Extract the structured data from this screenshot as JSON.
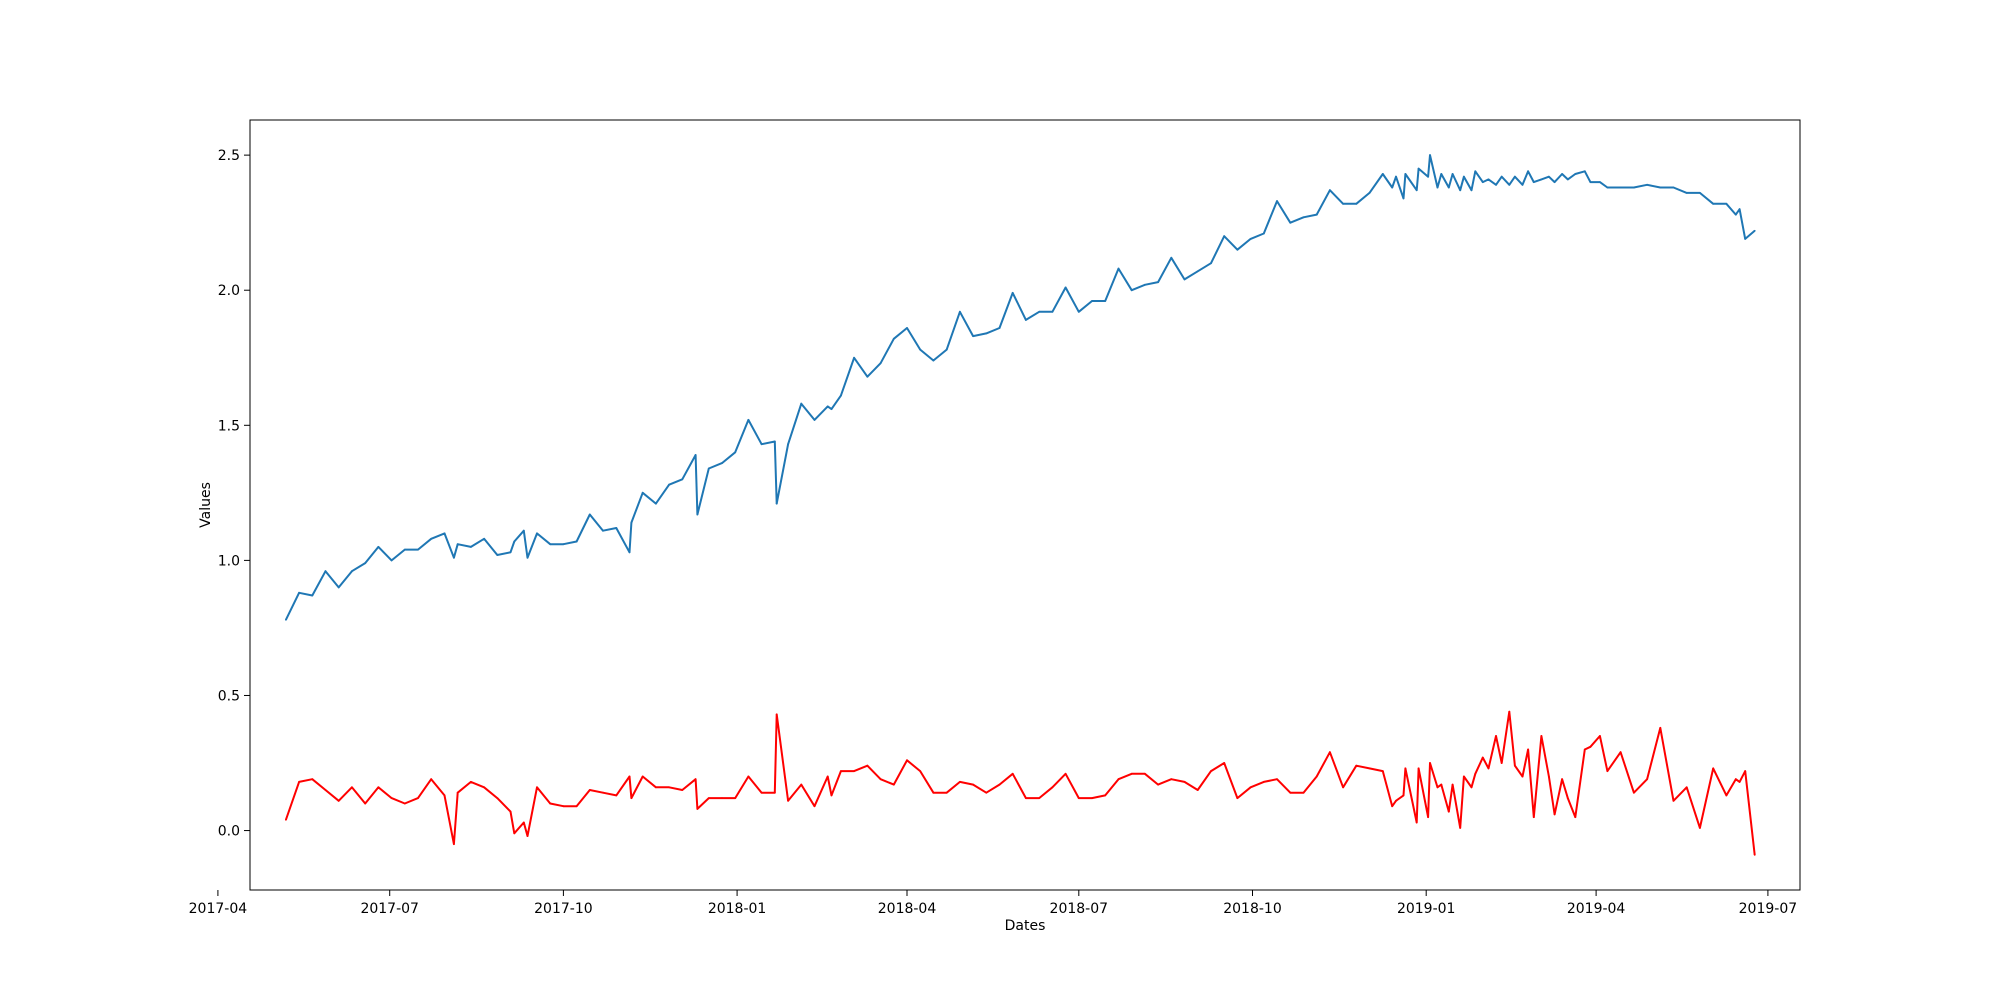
{
  "chart_data": {
    "type": "line",
    "title": "",
    "xlabel": "Dates",
    "ylabel": "Values",
    "x_axis_type": "date",
    "xlim": [
      "2017-04-18",
      "2019-07-18"
    ],
    "ylim": [
      -0.22,
      2.63
    ],
    "x_ticks": [
      "2017-04-01",
      "2017-07-01",
      "2017-10-01",
      "2018-01-01",
      "2018-04-01",
      "2018-07-01",
      "2018-10-01",
      "2019-01-01",
      "2019-04-01",
      "2019-07-01"
    ],
    "x_tick_labels": [
      "2017-04",
      "2017-07",
      "2017-10",
      "2018-01",
      "2018-04",
      "2018-07",
      "2018-10",
      "2019-01",
      "2019-04",
      "2019-07"
    ],
    "y_ticks": [
      0.0,
      0.5,
      1.0,
      1.5,
      2.0,
      2.5
    ],
    "y_tick_labels": [
      "0.0",
      "0.5",
      "1.0",
      "1.5",
      "2.0",
      "2.5"
    ],
    "grid": false,
    "legend": "none",
    "series": [
      {
        "color": "#1f77b4",
        "points": [
          [
            "2017-05-07",
            0.78
          ],
          [
            "2017-05-14",
            0.88
          ],
          [
            "2017-05-21",
            0.87
          ],
          [
            "2017-05-28",
            0.96
          ],
          [
            "2017-06-04",
            0.9
          ],
          [
            "2017-06-11",
            0.96
          ],
          [
            "2017-06-18",
            0.99
          ],
          [
            "2017-06-25",
            1.05
          ],
          [
            "2017-07-02",
            1.0
          ],
          [
            "2017-07-09",
            1.04
          ],
          [
            "2017-07-16",
            1.04
          ],
          [
            "2017-07-23",
            1.08
          ],
          [
            "2017-07-30",
            1.1
          ],
          [
            "2017-08-04",
            1.01
          ],
          [
            "2017-08-06",
            1.06
          ],
          [
            "2017-08-13",
            1.05
          ],
          [
            "2017-08-20",
            1.08
          ],
          [
            "2017-08-27",
            1.02
          ],
          [
            "2017-09-03",
            1.03
          ],
          [
            "2017-09-05",
            1.07
          ],
          [
            "2017-09-10",
            1.11
          ],
          [
            "2017-09-12",
            1.01
          ],
          [
            "2017-09-17",
            1.1
          ],
          [
            "2017-09-24",
            1.06
          ],
          [
            "2017-10-01",
            1.06
          ],
          [
            "2017-10-08",
            1.07
          ],
          [
            "2017-10-15",
            1.17
          ],
          [
            "2017-10-22",
            1.11
          ],
          [
            "2017-10-29",
            1.12
          ],
          [
            "2017-11-05",
            1.03
          ],
          [
            "2017-11-06",
            1.14
          ],
          [
            "2017-11-12",
            1.25
          ],
          [
            "2017-11-19",
            1.21
          ],
          [
            "2017-11-26",
            1.28
          ],
          [
            "2017-12-03",
            1.3
          ],
          [
            "2017-12-10",
            1.39
          ],
          [
            "2017-12-11",
            1.17
          ],
          [
            "2017-12-17",
            1.34
          ],
          [
            "2017-12-24",
            1.36
          ],
          [
            "2017-12-31",
            1.4
          ],
          [
            "2018-01-07",
            1.52
          ],
          [
            "2018-01-14",
            1.43
          ],
          [
            "2018-01-21",
            1.44
          ],
          [
            "2018-01-22",
            1.21
          ],
          [
            "2018-01-28",
            1.43
          ],
          [
            "2018-02-04",
            1.58
          ],
          [
            "2018-02-11",
            1.52
          ],
          [
            "2018-02-18",
            1.57
          ],
          [
            "2018-02-20",
            1.56
          ],
          [
            "2018-02-25",
            1.61
          ],
          [
            "2018-03-04",
            1.75
          ],
          [
            "2018-03-11",
            1.68
          ],
          [
            "2018-03-18",
            1.73
          ],
          [
            "2018-03-25",
            1.82
          ],
          [
            "2018-04-01",
            1.86
          ],
          [
            "2018-04-08",
            1.78
          ],
          [
            "2018-04-15",
            1.74
          ],
          [
            "2018-04-22",
            1.78
          ],
          [
            "2018-04-29",
            1.92
          ],
          [
            "2018-05-06",
            1.83
          ],
          [
            "2018-05-13",
            1.84
          ],
          [
            "2018-05-20",
            1.86
          ],
          [
            "2018-05-27",
            1.99
          ],
          [
            "2018-06-03",
            1.89
          ],
          [
            "2018-06-10",
            1.92
          ],
          [
            "2018-06-17",
            1.92
          ],
          [
            "2018-06-24",
            2.01
          ],
          [
            "2018-07-01",
            1.92
          ],
          [
            "2018-07-08",
            1.96
          ],
          [
            "2018-07-15",
            1.96
          ],
          [
            "2018-07-22",
            2.08
          ],
          [
            "2018-07-29",
            2.0
          ],
          [
            "2018-08-05",
            2.02
          ],
          [
            "2018-08-12",
            2.03
          ],
          [
            "2018-08-19",
            2.12
          ],
          [
            "2018-08-26",
            2.04
          ],
          [
            "2018-09-02",
            2.07
          ],
          [
            "2018-09-09",
            2.1
          ],
          [
            "2018-09-16",
            2.2
          ],
          [
            "2018-09-23",
            2.15
          ],
          [
            "2018-09-30",
            2.19
          ],
          [
            "2018-10-07",
            2.21
          ],
          [
            "2018-10-14",
            2.33
          ],
          [
            "2018-10-21",
            2.25
          ],
          [
            "2018-10-28",
            2.27
          ],
          [
            "2018-11-04",
            2.28
          ],
          [
            "2018-11-11",
            2.37
          ],
          [
            "2018-11-18",
            2.32
          ],
          [
            "2018-11-25",
            2.32
          ],
          [
            "2018-12-02",
            2.36
          ],
          [
            "2018-12-09",
            2.43
          ],
          [
            "2018-12-14",
            2.38
          ],
          [
            "2018-12-16",
            2.42
          ],
          [
            "2018-12-20",
            2.34
          ],
          [
            "2018-12-21",
            2.43
          ],
          [
            "2018-12-27",
            2.37
          ],
          [
            "2018-12-28",
            2.45
          ],
          [
            "2019-01-02",
            2.42
          ],
          [
            "2019-01-03",
            2.5
          ],
          [
            "2019-01-07",
            2.38
          ],
          [
            "2019-01-09",
            2.43
          ],
          [
            "2019-01-13",
            2.38
          ],
          [
            "2019-01-15",
            2.43
          ],
          [
            "2019-01-19",
            2.37
          ],
          [
            "2019-01-21",
            2.42
          ],
          [
            "2019-01-25",
            2.37
          ],
          [
            "2019-01-27",
            2.44
          ],
          [
            "2019-01-31",
            2.4
          ],
          [
            "2019-02-03",
            2.41
          ],
          [
            "2019-02-07",
            2.39
          ],
          [
            "2019-02-10",
            2.42
          ],
          [
            "2019-02-14",
            2.39
          ],
          [
            "2019-02-17",
            2.42
          ],
          [
            "2019-02-21",
            2.39
          ],
          [
            "2019-02-24",
            2.44
          ],
          [
            "2019-02-27",
            2.4
          ],
          [
            "2019-03-03",
            2.41
          ],
          [
            "2019-03-07",
            2.42
          ],
          [
            "2019-03-10",
            2.4
          ],
          [
            "2019-03-14",
            2.43
          ],
          [
            "2019-03-17",
            2.41
          ],
          [
            "2019-03-21",
            2.43
          ],
          [
            "2019-03-26",
            2.44
          ],
          [
            "2019-03-29",
            2.4
          ],
          [
            "2019-04-03",
            2.4
          ],
          [
            "2019-04-07",
            2.38
          ],
          [
            "2019-04-14",
            2.38
          ],
          [
            "2019-04-21",
            2.38
          ],
          [
            "2019-04-28",
            2.39
          ],
          [
            "2019-05-05",
            2.38
          ],
          [
            "2019-05-12",
            2.38
          ],
          [
            "2019-05-19",
            2.36
          ],
          [
            "2019-05-26",
            2.36
          ],
          [
            "2019-06-02",
            2.32
          ],
          [
            "2019-06-09",
            2.32
          ],
          [
            "2019-06-14",
            2.28
          ],
          [
            "2019-06-16",
            2.3
          ],
          [
            "2019-06-19",
            2.19
          ],
          [
            "2019-06-24",
            2.22
          ]
        ]
      },
      {
        "color": "#ff0000",
        "points": [
          [
            "2017-05-07",
            0.04
          ],
          [
            "2017-05-14",
            0.18
          ],
          [
            "2017-05-21",
            0.19
          ],
          [
            "2017-05-28",
            0.15
          ],
          [
            "2017-06-04",
            0.11
          ],
          [
            "2017-06-11",
            0.16
          ],
          [
            "2017-06-18",
            0.1
          ],
          [
            "2017-06-25",
            0.16
          ],
          [
            "2017-07-02",
            0.12
          ],
          [
            "2017-07-09",
            0.1
          ],
          [
            "2017-07-16",
            0.12
          ],
          [
            "2017-07-23",
            0.19
          ],
          [
            "2017-07-30",
            0.13
          ],
          [
            "2017-08-04",
            -0.05
          ],
          [
            "2017-08-06",
            0.14
          ],
          [
            "2017-08-13",
            0.18
          ],
          [
            "2017-08-20",
            0.16
          ],
          [
            "2017-08-27",
            0.12
          ],
          [
            "2017-09-03",
            0.07
          ],
          [
            "2017-09-05",
            -0.01
          ],
          [
            "2017-09-10",
            0.03
          ],
          [
            "2017-09-12",
            -0.02
          ],
          [
            "2017-09-17",
            0.16
          ],
          [
            "2017-09-24",
            0.1
          ],
          [
            "2017-10-01",
            0.09
          ],
          [
            "2017-10-08",
            0.09
          ],
          [
            "2017-10-15",
            0.15
          ],
          [
            "2017-10-22",
            0.14
          ],
          [
            "2017-10-29",
            0.13
          ],
          [
            "2017-11-05",
            0.2
          ],
          [
            "2017-11-06",
            0.12
          ],
          [
            "2017-11-12",
            0.2
          ],
          [
            "2017-11-19",
            0.16
          ],
          [
            "2017-11-26",
            0.16
          ],
          [
            "2017-12-03",
            0.15
          ],
          [
            "2017-12-10",
            0.19
          ],
          [
            "2017-12-11",
            0.08
          ],
          [
            "2017-12-17",
            0.12
          ],
          [
            "2017-12-24",
            0.12
          ],
          [
            "2017-12-31",
            0.12
          ],
          [
            "2018-01-07",
            0.2
          ],
          [
            "2018-01-14",
            0.14
          ],
          [
            "2018-01-21",
            0.14
          ],
          [
            "2018-01-22",
            0.43
          ],
          [
            "2018-01-28",
            0.11
          ],
          [
            "2018-02-04",
            0.17
          ],
          [
            "2018-02-11",
            0.09
          ],
          [
            "2018-02-18",
            0.2
          ],
          [
            "2018-02-20",
            0.13
          ],
          [
            "2018-02-25",
            0.22
          ],
          [
            "2018-03-04",
            0.22
          ],
          [
            "2018-03-11",
            0.24
          ],
          [
            "2018-03-18",
            0.19
          ],
          [
            "2018-03-25",
            0.17
          ],
          [
            "2018-04-01",
            0.26
          ],
          [
            "2018-04-08",
            0.22
          ],
          [
            "2018-04-15",
            0.14
          ],
          [
            "2018-04-22",
            0.14
          ],
          [
            "2018-04-29",
            0.18
          ],
          [
            "2018-05-06",
            0.17
          ],
          [
            "2018-05-13",
            0.14
          ],
          [
            "2018-05-20",
            0.17
          ],
          [
            "2018-05-27",
            0.21
          ],
          [
            "2018-06-03",
            0.12
          ],
          [
            "2018-06-10",
            0.12
          ],
          [
            "2018-06-17",
            0.16
          ],
          [
            "2018-06-24",
            0.21
          ],
          [
            "2018-07-01",
            0.12
          ],
          [
            "2018-07-08",
            0.12
          ],
          [
            "2018-07-15",
            0.13
          ],
          [
            "2018-07-22",
            0.19
          ],
          [
            "2018-07-29",
            0.21
          ],
          [
            "2018-08-05",
            0.21
          ],
          [
            "2018-08-12",
            0.17
          ],
          [
            "2018-08-19",
            0.19
          ],
          [
            "2018-08-26",
            0.18
          ],
          [
            "2018-09-02",
            0.15
          ],
          [
            "2018-09-09",
            0.22
          ],
          [
            "2018-09-16",
            0.25
          ],
          [
            "2018-09-23",
            0.12
          ],
          [
            "2018-09-30",
            0.16
          ],
          [
            "2018-10-07",
            0.18
          ],
          [
            "2018-10-14",
            0.19
          ],
          [
            "2018-10-21",
            0.14
          ],
          [
            "2018-10-28",
            0.14
          ],
          [
            "2018-11-04",
            0.2
          ],
          [
            "2018-11-11",
            0.29
          ],
          [
            "2018-11-18",
            0.16
          ],
          [
            "2018-11-25",
            0.24
          ],
          [
            "2018-12-02",
            0.23
          ],
          [
            "2018-12-09",
            0.22
          ],
          [
            "2018-12-14",
            0.09
          ],
          [
            "2018-12-16",
            0.11
          ],
          [
            "2018-12-20",
            0.13
          ],
          [
            "2018-12-21",
            0.23
          ],
          [
            "2018-12-27",
            0.03
          ],
          [
            "2018-12-28",
            0.23
          ],
          [
            "2019-01-02",
            0.05
          ],
          [
            "2019-01-03",
            0.25
          ],
          [
            "2019-01-07",
            0.16
          ],
          [
            "2019-01-09",
            0.17
          ],
          [
            "2019-01-13",
            0.07
          ],
          [
            "2019-01-15",
            0.17
          ],
          [
            "2019-01-19",
            0.01
          ],
          [
            "2019-01-21",
            0.2
          ],
          [
            "2019-01-25",
            0.16
          ],
          [
            "2019-01-27",
            0.21
          ],
          [
            "2019-01-31",
            0.27
          ],
          [
            "2019-02-03",
            0.23
          ],
          [
            "2019-02-07",
            0.35
          ],
          [
            "2019-02-10",
            0.25
          ],
          [
            "2019-02-14",
            0.44
          ],
          [
            "2019-02-17",
            0.24
          ],
          [
            "2019-02-21",
            0.2
          ],
          [
            "2019-02-24",
            0.3
          ],
          [
            "2019-02-27",
            0.05
          ],
          [
            "2019-03-03",
            0.35
          ],
          [
            "2019-03-07",
            0.2
          ],
          [
            "2019-03-10",
            0.06
          ],
          [
            "2019-03-14",
            0.19
          ],
          [
            "2019-03-17",
            0.12
          ],
          [
            "2019-03-21",
            0.05
          ],
          [
            "2019-03-26",
            0.3
          ],
          [
            "2019-03-29",
            0.31
          ],
          [
            "2019-04-03",
            0.35
          ],
          [
            "2019-04-07",
            0.22
          ],
          [
            "2019-04-14",
            0.29
          ],
          [
            "2019-04-21",
            0.14
          ],
          [
            "2019-04-28",
            0.19
          ],
          [
            "2019-05-05",
            0.38
          ],
          [
            "2019-05-12",
            0.11
          ],
          [
            "2019-05-19",
            0.16
          ],
          [
            "2019-05-26",
            0.01
          ],
          [
            "2019-06-02",
            0.23
          ],
          [
            "2019-06-09",
            0.13
          ],
          [
            "2019-06-14",
            0.19
          ],
          [
            "2019-06-16",
            0.18
          ],
          [
            "2019-06-19",
            0.22
          ],
          [
            "2019-06-24",
            -0.09
          ]
        ]
      }
    ]
  }
}
